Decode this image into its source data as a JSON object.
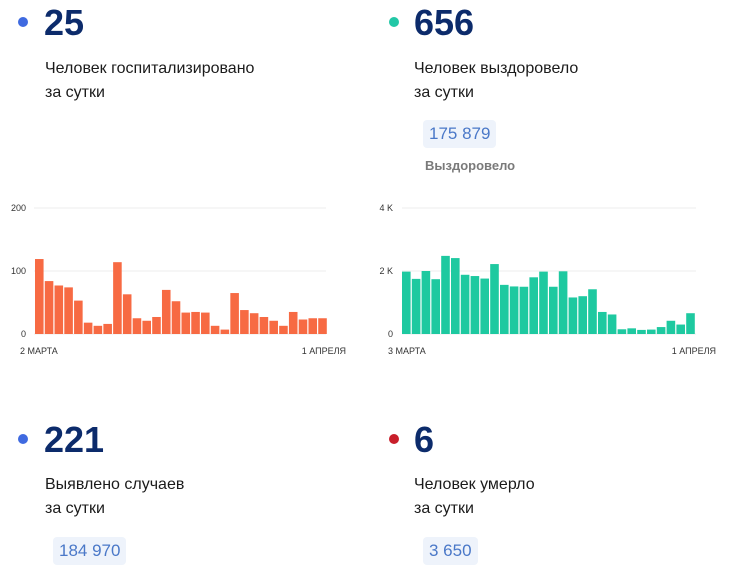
{
  "hospitalized": {
    "value": "25",
    "line1": "Человек госпитализировано",
    "line2": "за сутки",
    "dot_color": "#3f6ae0"
  },
  "recovered": {
    "value": "656",
    "line1": "Человек выздоровело",
    "line2": "за сутки",
    "total": "175 879",
    "total_label": "Выздоровело",
    "dot_color": "#22c7a6"
  },
  "detected": {
    "value": "221",
    "line1": "Выявлено случаев",
    "line2": "за сутки",
    "total": "184 970",
    "dot_color": "#3f6ae0"
  },
  "deaths": {
    "value": "6",
    "line1": "Человек умерло",
    "line2": "за сутки",
    "total": "3 650",
    "dot_color": "#c81e2a"
  },
  "chart_data": [
    {
      "type": "bar",
      "color": "#f76a43",
      "ylim": [
        0,
        200
      ],
      "yticks": [
        "200",
        "100",
        "0"
      ],
      "x_start_label": "2 МАРТА",
      "x_end_label": "1 АПРЕЛЯ",
      "values": [
        119,
        84,
        77,
        74,
        53,
        18,
        13,
        16,
        114,
        63,
        25,
        21,
        27,
        70,
        52,
        34,
        35,
        34,
        13,
        7,
        65,
        38,
        33,
        27,
        21,
        13,
        35,
        23,
        25,
        25
      ]
    },
    {
      "type": "bar",
      "color": "#1ec9a0",
      "ylim": [
        0,
        4000
      ],
      "yticks": [
        "4 K",
        "2 K",
        "0"
      ],
      "x_start_label": "3 МАРТА",
      "x_end_label": "1 АПРЕЛЯ",
      "values": [
        1980,
        1750,
        2000,
        1740,
        2480,
        2410,
        1880,
        1840,
        1760,
        2220,
        1560,
        1510,
        1500,
        1800,
        1980,
        1500,
        1990,
        1160,
        1200,
        1420,
        700,
        620,
        150,
        180,
        130,
        140,
        220,
        420,
        300,
        660
      ]
    }
  ]
}
